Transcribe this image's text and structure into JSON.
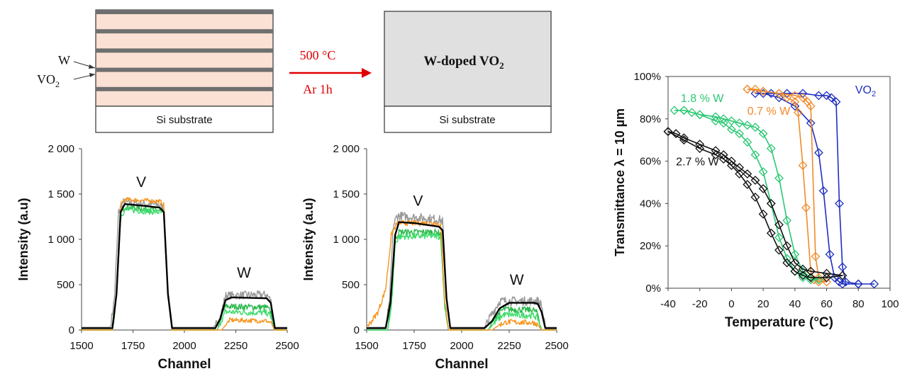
{
  "schematic": {
    "left": {
      "substrate_label": "Si substrate",
      "arrow_label_w": "W",
      "arrow_label_vo2": "VO",
      "arrow_label_vo2_sub": "2",
      "layer_colors": {
        "vo2": "#fbe0d4",
        "w": "#6f6f6f",
        "substrate": "#ffffff"
      },
      "vo2_layers": 5,
      "w_layers": 5
    },
    "process": {
      "line1": "500 °C",
      "line2": "Ar 1h",
      "color": "#e00000"
    },
    "right": {
      "film_label": "W-doped VO",
      "film_label_sub": "2",
      "substrate_label": "Si substrate",
      "film_color": "#e0e0e0"
    }
  },
  "chart_data": [
    {
      "type": "line",
      "id": "rbs-before",
      "xlabel": "Channel",
      "ylabel": "Intensity (a.u)",
      "xlim": [
        1500,
        2500
      ],
      "ylim": [
        0,
        2000
      ],
      "xticks": [
        "1500",
        "1750",
        "2000",
        "2250",
        "2500"
      ],
      "yticks": [
        "0",
        "500",
        "1 000",
        "1 500",
        "2 000"
      ],
      "annotations": [
        {
          "text": "V",
          "x": 1790,
          "y": 1580
        },
        {
          "text": "W",
          "x": 2290,
          "y": 580
        }
      ],
      "series": [
        {
          "color": "#999999",
          "noise": 45,
          "x": [
            1500,
            1640,
            1660,
            1680,
            1700,
            1880,
            1900,
            1920,
            1940,
            2140,
            2170,
            2200,
            2400,
            2420,
            2440,
            2500
          ],
          "y": [
            30,
            30,
            350,
            1300,
            1410,
            1380,
            1340,
            400,
            30,
            30,
            110,
            380,
            390,
            330,
            30,
            30
          ]
        },
        {
          "color": "#2db84d",
          "noise": 35,
          "x": [
            1500,
            1650,
            1670,
            1690,
            1710,
            1880,
            1900,
            1920,
            1940,
            2160,
            2180,
            2200,
            2400,
            2420,
            2440,
            2500
          ],
          "y": [
            0,
            0,
            400,
            1300,
            1360,
            1320,
            1300,
            400,
            0,
            0,
            150,
            260,
            250,
            200,
            0,
            0
          ]
        },
        {
          "color": "#3ddc6b",
          "noise": 35,
          "x": [
            1500,
            1650,
            1670,
            1690,
            1710,
            1880,
            1900,
            1920,
            1940,
            2160,
            2180,
            2200,
            2400,
            2420,
            2440,
            2500
          ],
          "y": [
            0,
            0,
            350,
            1250,
            1330,
            1300,
            1280,
            380,
            0,
            0,
            110,
            200,
            190,
            150,
            0,
            0
          ]
        },
        {
          "color": "#f7941d",
          "noise": 25,
          "x": [
            1500,
            1650,
            1670,
            1690,
            1710,
            1880,
            1900,
            1920,
            1940,
            2180,
            2200,
            2220,
            2400,
            2420,
            2440,
            2500
          ],
          "y": [
            0,
            0,
            420,
            1380,
            1440,
            1420,
            1380,
            400,
            0,
            0,
            50,
            110,
            100,
            80,
            0,
            0
          ]
        },
        {
          "color": "#000000",
          "noise": 0,
          "x": [
            1500,
            1650,
            1670,
            1690,
            1710,
            1800,
            1880,
            1900,
            1920,
            1940,
            2150,
            2175,
            2200,
            2230,
            2400,
            2420,
            2440,
            2500
          ],
          "y": [
            20,
            20,
            400,
            1300,
            1390,
            1370,
            1350,
            1300,
            400,
            20,
            20,
            130,
            330,
            360,
            350,
            300,
            20,
            20
          ]
        }
      ]
    },
    {
      "type": "line",
      "id": "rbs-after",
      "xlabel": "Channel",
      "ylabel": "Intensity (a.u)",
      "xlim": [
        1500,
        2500
      ],
      "ylim": [
        0,
        2000
      ],
      "xticks": [
        "1500",
        "1750",
        "2000",
        "2250",
        "2500"
      ],
      "yticks": [
        "0",
        "500",
        "1 000",
        "1 500",
        "2 000"
      ],
      "annotations": [
        {
          "text": "V",
          "x": 1770,
          "y": 1370
        },
        {
          "text": "W",
          "x": 2290,
          "y": 500
        }
      ],
      "series": [
        {
          "color": "#999999",
          "noise": 50,
          "x": [
            1500,
            1600,
            1620,
            1640,
            1660,
            1880,
            1900,
            1920,
            1940,
            2120,
            2160,
            2200,
            2400,
            2420,
            2440,
            2500
          ],
          "y": [
            30,
            30,
            300,
            1150,
            1260,
            1220,
            1200,
            350,
            30,
            30,
            180,
            320,
            320,
            280,
            30,
            30
          ]
        },
        {
          "color": "#2db84d",
          "noise": 35,
          "x": [
            1500,
            1610,
            1630,
            1650,
            1670,
            1870,
            1890,
            1910,
            1930,
            2140,
            2180,
            2220,
            2380,
            2400,
            2420,
            2500
          ],
          "y": [
            0,
            0,
            300,
            1000,
            1080,
            1080,
            1060,
            300,
            0,
            0,
            150,
            230,
            220,
            180,
            0,
            0
          ]
        },
        {
          "color": "#3ddc6b",
          "noise": 35,
          "x": [
            1500,
            1610,
            1630,
            1650,
            1670,
            1870,
            1890,
            1910,
            1930,
            2140,
            2180,
            2220,
            2380,
            2400,
            2420,
            2500
          ],
          "y": [
            0,
            0,
            250,
            950,
            1030,
            1040,
            1020,
            280,
            0,
            0,
            100,
            170,
            160,
            130,
            0,
            0
          ]
        },
        {
          "color": "#f7941d",
          "noise": 30,
          "x": [
            1500,
            1520,
            1560,
            1600,
            1630,
            1660,
            1870,
            1890,
            1910,
            1930,
            2160,
            2200,
            2240,
            2380,
            2400,
            2420,
            2500
          ],
          "y": [
            40,
            80,
            200,
            450,
            1050,
            1180,
            1180,
            1150,
            350,
            0,
            0,
            60,
            90,
            80,
            60,
            0,
            0
          ]
        },
        {
          "color": "#000000",
          "noise": 0,
          "x": [
            1500,
            1600,
            1625,
            1650,
            1670,
            1750,
            1880,
            1900,
            1920,
            1940,
            2120,
            2160,
            2200,
            2250,
            2380,
            2400,
            2420,
            2440,
            2500
          ],
          "y": [
            20,
            20,
            300,
            1050,
            1190,
            1180,
            1140,
            1100,
            350,
            20,
            20,
            100,
            240,
            300,
            300,
            290,
            200,
            20,
            20
          ]
        }
      ]
    },
    {
      "type": "line",
      "id": "transmittance",
      "xlabel": "Temperature (°C)",
      "ylabel": "Transmittance  λ = 10 µm",
      "xlim": [
        -40,
        100
      ],
      "ylim": [
        0,
        100
      ],
      "xticks": [
        "-40",
        "-20",
        "0",
        "20",
        "40",
        "60",
        "80",
        "100"
      ],
      "yticks": [
        "0%",
        "20%",
        "40%",
        "60%",
        "80%",
        "100%"
      ],
      "series": [
        {
          "name": "VO",
          "name_sub": "2",
          "label_x": 78,
          "label_y": 92,
          "color": "#1f2fbf",
          "x": [
            15,
            25,
            35,
            45,
            55,
            60,
            63,
            66,
            68,
            70,
            72,
            80,
            90,
            80,
            70,
            68,
            65,
            62,
            58,
            55,
            50,
            40,
            30,
            20
          ],
          "y": [
            92,
            92,
            92,
            92,
            91,
            91,
            90,
            88,
            40,
            10,
            3,
            2,
            2,
            2,
            2,
            3,
            5,
            16,
            46,
            64,
            78,
            86,
            90,
            92
          ]
        },
        {
          "name": "0.7 % W",
          "label_x": 10,
          "label_y": 82,
          "color": "#f08a2a",
          "x": [
            10,
            15,
            20,
            30,
            40,
            45,
            48,
            50,
            53,
            55,
            60,
            55,
            52,
            50,
            47,
            45,
            42,
            40,
            35,
            30,
            20,
            10
          ],
          "y": [
            94,
            94,
            93,
            92,
            91,
            90,
            88,
            86,
            15,
            5,
            3,
            3,
            4,
            8,
            38,
            58,
            83,
            88,
            90,
            92,
            93,
            94
          ]
        },
        {
          "name": "1.8 % W",
          "label_x": -32,
          "label_y": 88,
          "color": "#2ac873",
          "x": [
            -36,
            -30,
            -25,
            -20,
            -10,
            -5,
            0,
            5,
            10,
            15,
            20,
            25,
            30,
            35,
            40,
            45,
            50,
            55,
            50,
            45,
            40,
            35,
            30,
            25,
            20,
            15,
            10,
            5,
            0,
            -5,
            -10,
            -20,
            -30
          ],
          "y": [
            84,
            84,
            83,
            82,
            81,
            80,
            79,
            78,
            77,
            76,
            73,
            66,
            52,
            32,
            16,
            8,
            5,
            4,
            4,
            5,
            8,
            14,
            24,
            40,
            55,
            63,
            69,
            73,
            75,
            78,
            79,
            82,
            84
          ]
        },
        {
          "name": "2.7 % W",
          "label_x": -35,
          "label_y": 58,
          "color": "#111111",
          "x": [
            -40,
            -35,
            -30,
            -20,
            -10,
            -5,
            0,
            5,
            10,
            15,
            20,
            25,
            30,
            35,
            40,
            45,
            50,
            60,
            70,
            60,
            50,
            45,
            40,
            35,
            30,
            25,
            20,
            15,
            10,
            5,
            0,
            -5,
            -10,
            -20,
            -30,
            -40
          ],
          "y": [
            74,
            73,
            71,
            68,
            65,
            63,
            60,
            57,
            54,
            51,
            47,
            40,
            30,
            20,
            12,
            9,
            8,
            7,
            6,
            5,
            5,
            6,
            8,
            12,
            18,
            26,
            35,
            43,
            49,
            54,
            58,
            61,
            63,
            66,
            70,
            74
          ]
        }
      ]
    }
  ]
}
